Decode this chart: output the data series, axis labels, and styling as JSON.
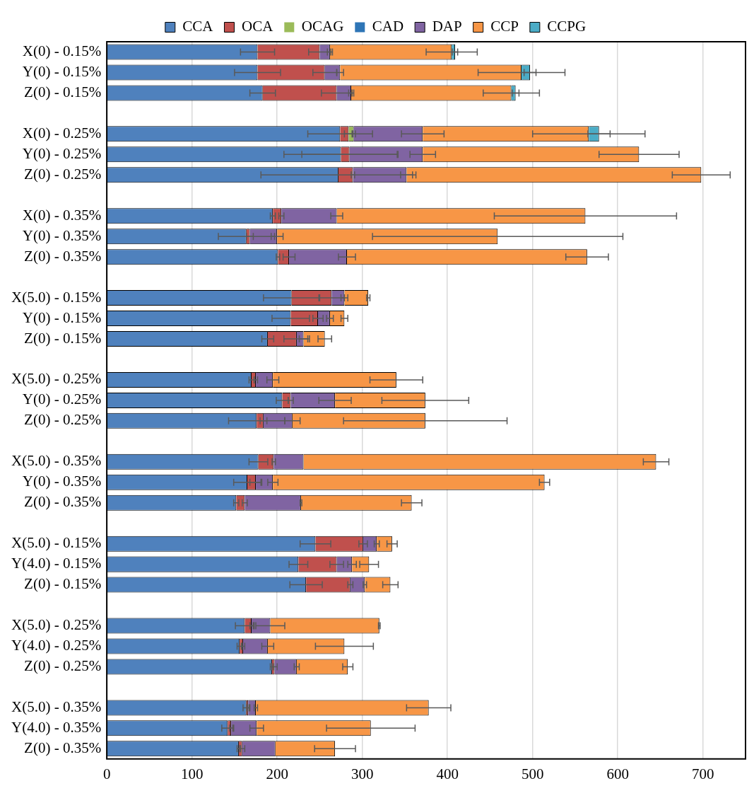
{
  "chart_data": {
    "type": "bar",
    "orientation": "horizontal",
    "stacked": true,
    "legend": "top",
    "grid": "x",
    "categories": [
      "X(0) - 0.15%",
      "Y(0) - 0.15%",
      "Z(0) - 0.15%",
      null,
      "X(0) - 0.25%",
      "Y(0) - 0.25%",
      "Z(0) - 0.25%",
      null,
      "X(0) - 0.35%",
      "Y(0) - 0.35%",
      "Z(0) - 0.35%",
      null,
      "X(5.0) - 0.15%",
      "Y(0) - 0.15%",
      "Z(0) - 0.15%",
      null,
      "X(5.0) - 0.25%",
      "Y(0) - 0.25%",
      "Z(0) - 0.25%",
      null,
      "X(5.0) - 0.35%",
      "Y(0) - 0.35%",
      "Z(0) - 0.35%",
      null,
      "X(5.0) - 0.15%",
      "Y(4.0) - 0.15%",
      "Z(0) - 0.15%",
      null,
      "X(5.0) - 0.25%",
      "Y(4.0) - 0.25%",
      "Z(0) - 0.25%",
      null,
      "X(5.0) - 0.35%",
      "Y(4.0) - 0.35%",
      "Z(0) - 0.35%"
    ],
    "xlim": [
      0,
      750
    ],
    "xticks": [
      0,
      100,
      200,
      300,
      400,
      500,
      600,
      700
    ],
    "series": [
      {
        "name": "CCA",
        "color": "#4f81bd",
        "values": [
          177,
          177,
          183,
          null,
          274,
          275,
          272,
          null,
          195,
          164,
          201,
          null,
          217,
          216,
          189,
          null,
          170,
          206,
          176,
          null,
          178,
          165,
          152,
          null,
          245,
          225,
          234,
          null,
          162,
          156,
          194,
          null,
          164,
          142,
          155
        ],
        "errors": [
          20,
          27,
          15,
          null,
          38,
          67,
          91,
          null,
          3,
          33,
          2,
          null,
          33,
          22,
          7,
          null,
          3,
          7,
          33,
          null,
          11,
          16,
          3,
          null,
          18,
          11,
          19,
          null,
          11,
          3,
          2,
          null,
          4,
          7,
          2
        ]
      },
      {
        "name": "OCA",
        "color": "#c0504d",
        "values": [
          73,
          79,
          87,
          null,
          10,
          10,
          17,
          null,
          10,
          4,
          13,
          null,
          47,
          32,
          34,
          null,
          5,
          10,
          8,
          null,
          18,
          10,
          10,
          null,
          56,
          45,
          52,
          null,
          8,
          4,
          3,
          null,
          2,
          4,
          4
        ],
        "errors": [
          13,
          14,
          18,
          null,
          5,
          56,
          2,
          null,
          3,
          4,
          7,
          null,
          15,
          6,
          15,
          null,
          2,
          3,
          4,
          null,
          2,
          7,
          3,
          null,
          5,
          8,
          3,
          null,
          2,
          2,
          3,
          null,
          1,
          2,
          3
        ]
      },
      {
        "name": "OCAG",
        "color": "#9bbb59",
        "values": [
          0,
          0,
          0,
          null,
          6,
          0,
          0,
          null,
          0,
          0,
          0,
          null,
          0,
          0,
          0,
          null,
          0,
          0,
          0,
          null,
          0,
          0,
          0,
          null,
          0,
          0,
          0,
          null,
          0,
          0,
          0,
          null,
          0,
          0,
          0
        ],
        "errors": [
          null,
          null,
          null,
          null,
          2,
          null,
          null,
          null,
          null,
          null,
          null,
          null,
          null,
          null,
          null,
          null,
          null,
          null,
          null,
          null,
          null,
          null,
          null,
          null,
          null,
          null,
          null,
          null,
          null,
          null,
          null,
          null,
          null,
          null,
          null
        ]
      },
      {
        "name": "CAD",
        "color": "#2e75b6",
        "values": [
          0,
          0,
          0,
          null,
          0,
          0,
          0,
          null,
          0,
          0,
          0,
          null,
          0,
          0,
          0,
          null,
          0,
          0,
          0,
          null,
          0,
          0,
          0,
          null,
          0,
          0,
          0,
          null,
          0,
          0,
          0,
          null,
          0,
          0,
          0
        ]
      },
      {
        "name": "DAP",
        "color": "#8064a2",
        "values": [
          12,
          18,
          17,
          null,
          81,
          86,
          63,
          null,
          65,
          32,
          68,
          null,
          15,
          14,
          8,
          null,
          20,
          52,
          34,
          null,
          35,
          20,
          66,
          null,
          16,
          18,
          17,
          null,
          22,
          29,
          26,
          null,
          9,
          30,
          39
        ],
        "errors": [
          3,
          4,
          3,
          null,
          25,
          15,
          7,
          null,
          7,
          7,
          10,
          null,
          4,
          4,
          5,
          null,
          7,
          19,
          9,
          null,
          null,
          6,
          1,
          null,
          3,
          5,
          2,
          null,
          17,
          7,
          3,
          null,
          2,
          8,
          null
        ]
      },
      {
        "name": "CCP",
        "color": "#f79646",
        "values": [
          143,
          213,
          188,
          null,
          195,
          254,
          346,
          null,
          292,
          259,
          282,
          null,
          28,
          17,
          25,
          null,
          145,
          106,
          156,
          null,
          414,
          319,
          130,
          null,
          18,
          20,
          30,
          null,
          128,
          90,
          60,
          null,
          203,
          134,
          70
        ],
        "errors": [
          30,
          51,
          33,
          null,
          66,
          47,
          34,
          null,
          107,
          147,
          25,
          null,
          2,
          4,
          8,
          null,
          31,
          51,
          96,
          null,
          15,
          6,
          12,
          null,
          6,
          11,
          9,
          null,
          1,
          34,
          6,
          null,
          26,
          52,
          24
        ]
      },
      {
        "name": "CCPG",
        "color": "#4bacc6",
        "values": [
          4,
          10,
          5,
          null,
          12,
          0,
          0,
          null,
          0,
          0,
          0,
          null,
          0,
          0,
          0,
          null,
          0,
          0,
          0,
          null,
          0,
          0,
          0,
          null,
          0,
          0,
          0,
          null,
          0,
          0,
          0,
          null,
          0,
          0,
          0
        ],
        "errors": [
          3,
          7,
          4,
          null,
          13,
          null,
          null,
          null,
          null,
          null,
          null,
          null,
          null,
          null,
          null,
          null,
          null,
          null,
          null,
          null,
          null,
          null,
          null,
          null,
          null,
          null,
          null,
          null,
          null,
          null,
          null,
          null,
          null,
          null,
          null
        ]
      }
    ]
  }
}
